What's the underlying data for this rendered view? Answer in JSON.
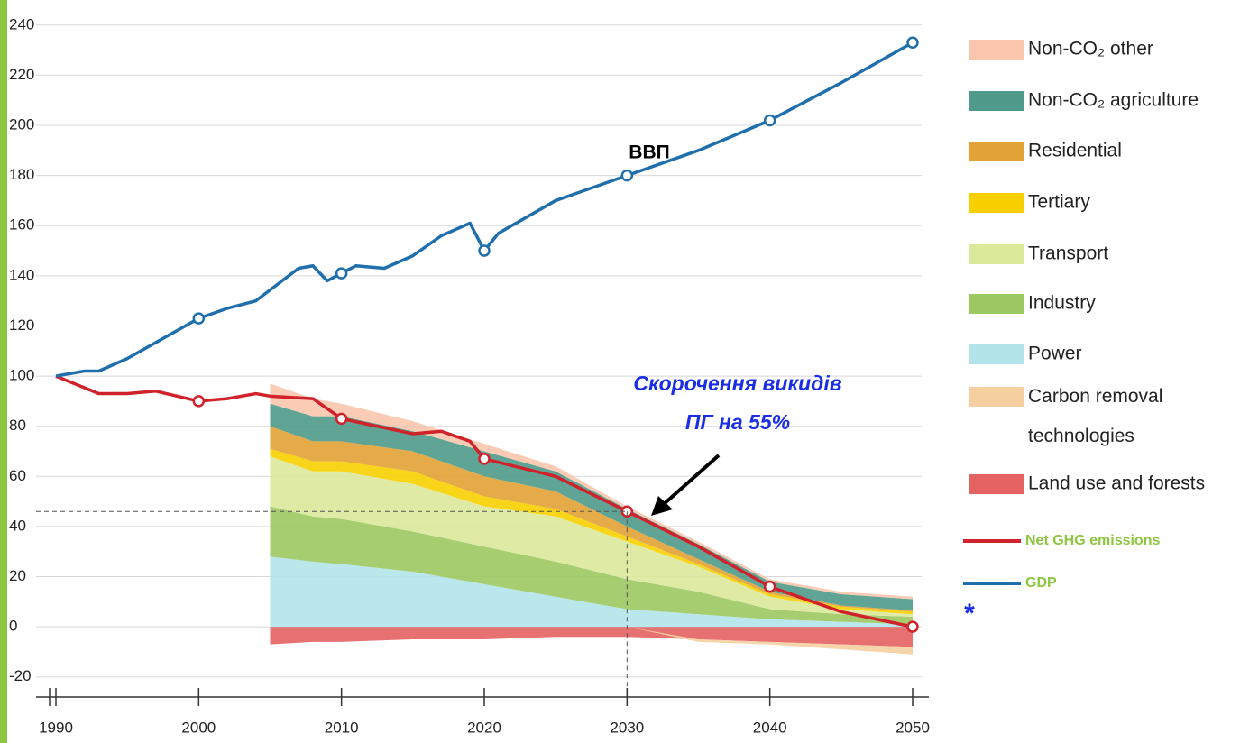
{
  "chart_data": {
    "type": "area",
    "stacked": true,
    "xlim": [
      1990,
      2050
    ],
    "ylim": [
      -28,
      250
    ],
    "xticks": [
      1990,
      2000,
      2010,
      2020,
      2030,
      2040,
      2050
    ],
    "yticks": [
      -20,
      0,
      20,
      40,
      60,
      80,
      100,
      120,
      140,
      160,
      180,
      200,
      220,
      240
    ],
    "grid": true,
    "x": [
      2005,
      2008,
      2010,
      2015,
      2020,
      2025,
      2030,
      2035,
      2040,
      2045,
      2050
    ],
    "series": [
      {
        "name": "Non-CO₂ other",
        "color": "#f9c6ad",
        "values": [
          8,
          7,
          5,
          4,
          3,
          2,
          1,
          1,
          1,
          1,
          1
        ]
      },
      {
        "name": "Non-CO₂ agriculture",
        "color": "#4f9a8a",
        "values": [
          9,
          10,
          10,
          8,
          10,
          8,
          7,
          6,
          4,
          4.5,
          4.5
        ]
      },
      {
        "name": "Residential",
        "color": "#e3a235",
        "values": [
          9,
          8,
          8,
          8,
          8,
          7,
          4,
          2,
          1,
          0.5,
          0.5
        ]
      },
      {
        "name": "Tertiary",
        "color": "#f8d000",
        "values": [
          3,
          4,
          4,
          5,
          4,
          3,
          2,
          1,
          1,
          1,
          1
        ]
      },
      {
        "name": "Transport",
        "color": "#dbe99b",
        "values": [
          20,
          18,
          19,
          19,
          16,
          18,
          15,
          10,
          5,
          2,
          1
        ]
      },
      {
        "name": "Industry",
        "color": "#9cc861",
        "values": [
          20,
          18,
          18,
          16,
          15,
          14,
          12,
          9,
          4,
          3,
          3
        ]
      },
      {
        "name": "Power",
        "color": "#b2e4ea",
        "values": [
          28,
          26,
          25,
          22,
          17,
          12,
          7,
          5,
          3,
          2,
          1
        ]
      },
      {
        "name": "Carbon removal technologies",
        "color": "#f5cfa0",
        "values": [
          0,
          0,
          0,
          0,
          0,
          0,
          0,
          -1,
          -1,
          -2,
          -3
        ]
      },
      {
        "name": "Land use and forests",
        "color": "#e46262",
        "values": [
          -7,
          -6,
          -6,
          -5,
          -5,
          -4,
          -4,
          -5,
          -6,
          -7,
          -8
        ]
      }
    ],
    "lines": [
      {
        "name": "Net GHG emissions",
        "color": "#d0222a",
        "x": [
          1990,
          1993,
          1995,
          1997,
          2000,
          2002,
          2004,
          2005,
          2008,
          2010,
          2015,
          2017,
          2019,
          2020,
          2025,
          2030,
          2035,
          2040,
          2045,
          2050
        ],
        "values": [
          100,
          93,
          93,
          94,
          90,
          91,
          93,
          92,
          91,
          83,
          77,
          78,
          74,
          67,
          60,
          46,
          32,
          16,
          6,
          0
        ]
      },
      {
        "name": "GDP",
        "color": "#1f6fad",
        "x": [
          1990,
          1992,
          1993,
          1995,
          2000,
          2002,
          2004,
          2007,
          2008,
          2009,
          2010,
          2011,
          2013,
          2015,
          2017,
          2019,
          2020,
          2021,
          2025,
          2030,
          2035,
          2040,
          2045,
          2050
        ],
        "values": [
          100,
          102,
          102,
          107,
          123,
          127,
          130,
          143,
          144,
          138,
          141,
          144,
          143,
          148,
          156,
          161,
          150,
          157,
          170,
          180,
          190,
          202,
          217,
          233
        ]
      }
    ],
    "legend_line_text_color": "#8dc63f",
    "annotations": {
      "gdp_label": "ВВП",
      "target_label": [
        "Скорочення викидів",
        "ПГ на 55%"
      ],
      "footnote_mark": "*"
    }
  }
}
